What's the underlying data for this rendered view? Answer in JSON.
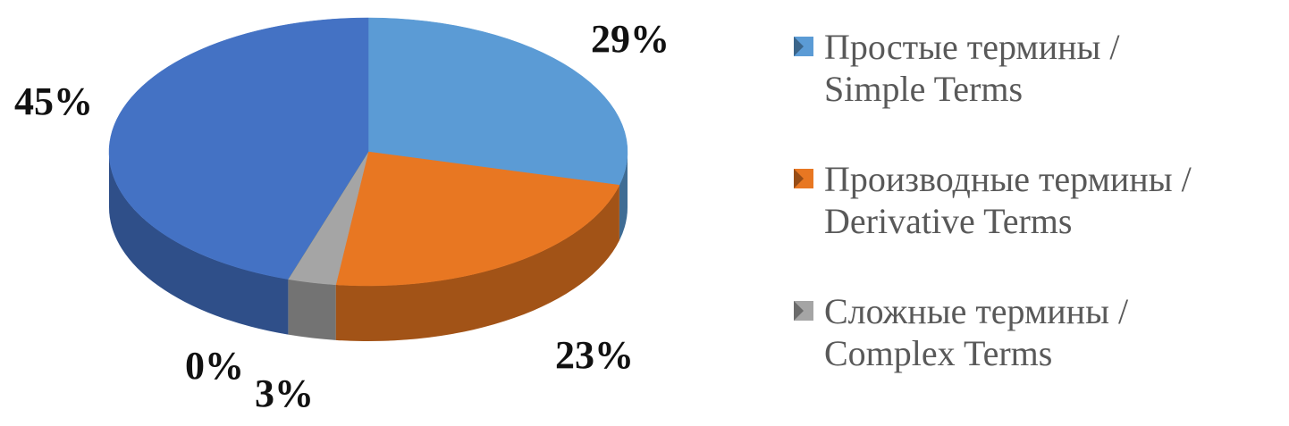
{
  "chart_data": {
    "type": "pie",
    "style": "3d",
    "categories": [
      "Простые термины / Simple  Terms",
      "Производные термины / Derivative Terms",
      "Сложные термины / Complex Terms",
      null,
      null
    ],
    "values": [
      29,
      23,
      3,
      0,
      45
    ],
    "value_labels": [
      "29%",
      "23%",
      "3%",
      "0%",
      "45%"
    ],
    "colors": [
      "#5b9bd5",
      "#e87722",
      "#a5a5a5",
      "#ffc000",
      "#4472c4"
    ]
  }
}
